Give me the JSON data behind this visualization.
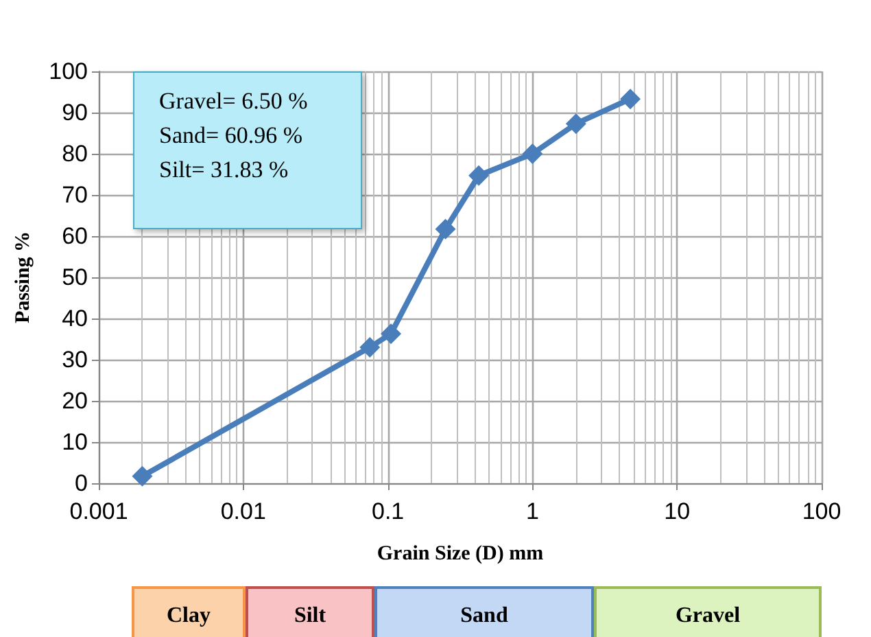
{
  "chart_data": {
    "type": "line",
    "xlabel": "Grain Size (D) mm",
    "ylabel": "Passing %",
    "x": [
      0.002,
      0.075,
      0.105,
      0.25,
      0.425,
      1,
      2,
      4.75
    ],
    "series": [
      {
        "color": "#4a7ebb",
        "values": [
          1.7,
          33,
          36.3,
          61.7,
          74.7,
          80,
          87.3,
          93.3
        ]
      }
    ],
    "log": "x",
    "xlim": [
      0.001,
      100
    ],
    "xticks": [
      0.001,
      0.01,
      0.1,
      1,
      10,
      100
    ],
    "ylim": [
      0,
      100
    ],
    "yticks": [
      0,
      10,
      20,
      30,
      40,
      50,
      60,
      70,
      80,
      90,
      100
    ],
    "grid": true,
    "marker": "diamond",
    "line_style": "solid",
    "annotations": [
      "Gravel= 6.50 %\nSand= 60.96 %\nSilt= 31.83 %",
      "Clay",
      "Silt",
      "Sand",
      "Gravel"
    ]
  }
}
